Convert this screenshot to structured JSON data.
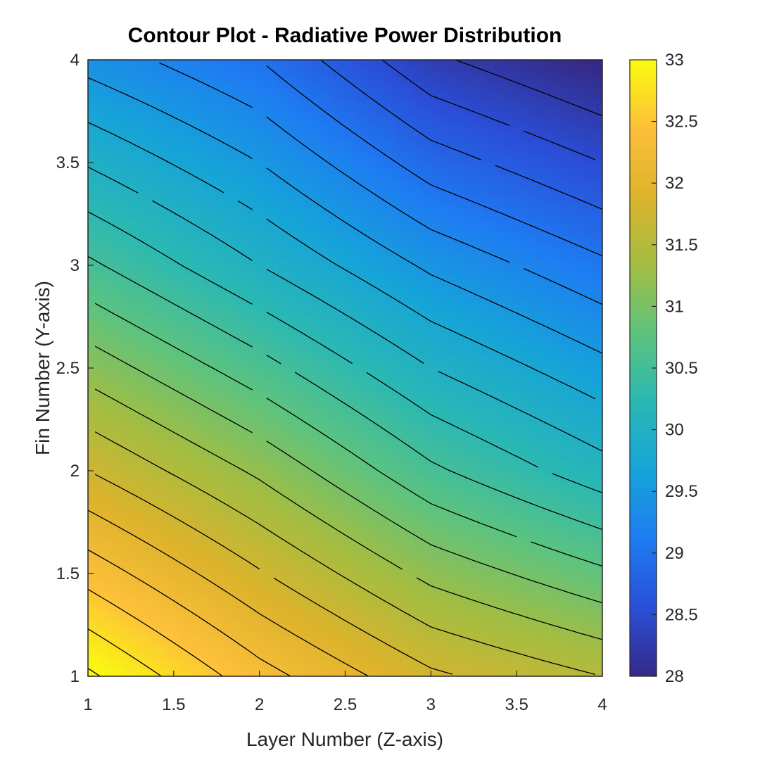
{
  "chart_data": {
    "type": "contour",
    "title": "Contour Plot - Radiative Power Distribution",
    "xlabel": "Layer Number (Z-axis)",
    "ylabel": "Fin Number (Y-axis)",
    "x": [
      1,
      2,
      3,
      4
    ],
    "y": [
      1,
      2,
      3,
      4
    ],
    "z": [
      [
        33.05,
        32.35,
        31.8,
        31.5
      ],
      [
        31.75,
        31.2,
        30.55,
        30.1
      ],
      [
        30.55,
        30.0,
        29.45,
        29.05
      ],
      [
        29.4,
        29.0,
        28.3,
        27.95
      ]
    ],
    "xlim": [
      1,
      4
    ],
    "ylim": [
      1,
      4
    ],
    "xticks": [
      1,
      1.5,
      2,
      2.5,
      3,
      3.5,
      4
    ],
    "yticks": [
      1,
      1.5,
      2,
      2.5,
      3,
      3.5,
      4
    ],
    "contour_levels": [
      28.25,
      28.5,
      28.75,
      29,
      29.25,
      29.5,
      29.75,
      30,
      30.25,
      30.5,
      30.75,
      31,
      31.25,
      31.5,
      31.75,
      32,
      32.25,
      32.5,
      32.75,
      33
    ],
    "colorbar": {
      "range": [
        28,
        33
      ],
      "ticks": [
        28,
        28.5,
        29,
        29.5,
        30,
        30.5,
        31,
        31.5,
        32,
        32.5,
        33
      ],
      "colormap": "parula",
      "colors": [
        "#352a87",
        "#2a4fd8",
        "#1e7cf2",
        "#16a4d8",
        "#2ab8b4",
        "#5dc37e",
        "#a3bd42",
        "#dcb32b",
        "#fdbf3a",
        "#f9fb0e"
      ]
    }
  }
}
